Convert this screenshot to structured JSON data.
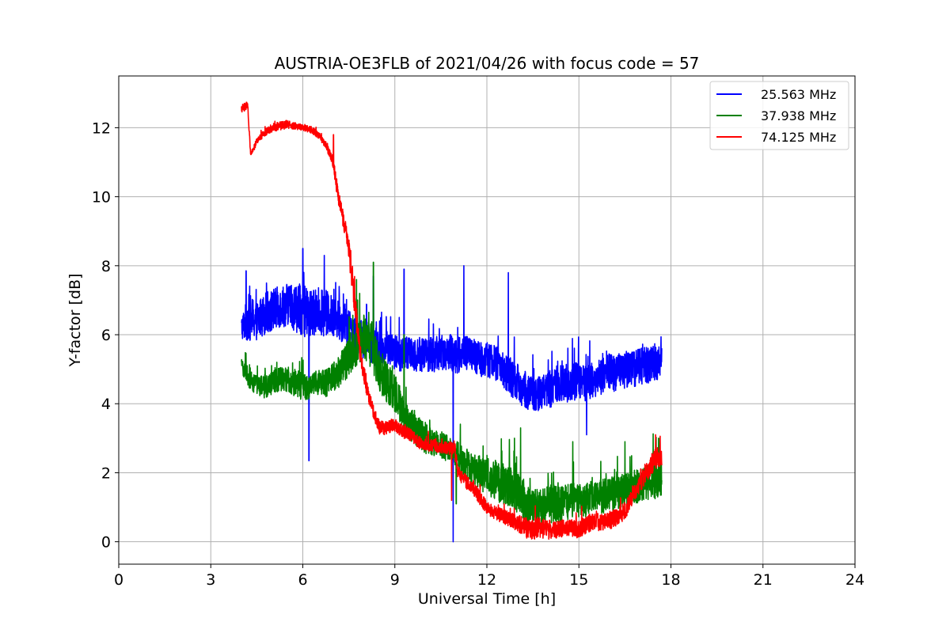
{
  "chart_data": {
    "type": "line",
    "title": "AUSTRIA-OE3FLB of 2021/04/26 with focus code = 57",
    "xlabel": "Universal Time [h]",
    "ylabel": "Y-factor [dB]",
    "xlim": [
      0,
      24
    ],
    "ylim": [
      -0.65,
      13.5
    ],
    "xticks": [
      0,
      3,
      6,
      9,
      12,
      15,
      18,
      21,
      24
    ],
    "yticks": [
      0,
      2,
      4,
      6,
      8,
      10,
      12
    ],
    "grid": true,
    "legend_position": "top-right",
    "series": [
      {
        "name": "25.563 MHz",
        "color": "#0000ff",
        "x": [
          4.0,
          4.25,
          4.5,
          4.75,
          5.0,
          5.25,
          5.5,
          5.75,
          6.0,
          6.25,
          6.5,
          6.75,
          7.0,
          7.25,
          7.5,
          7.75,
          8.0,
          8.25,
          8.5,
          8.75,
          9.0,
          9.25,
          9.5,
          9.75,
          10.0,
          10.25,
          10.5,
          10.75,
          11.0,
          11.25,
          11.5,
          11.75,
          12.0,
          12.25,
          12.5,
          12.75,
          13.0,
          13.25,
          13.5,
          13.75,
          14.0,
          14.25,
          14.5,
          14.75,
          15.0,
          15.25,
          15.5,
          15.75,
          16.0,
          16.25,
          16.5,
          16.75,
          17.0,
          17.25,
          17.5,
          17.7
        ],
        "y": [
          6.2,
          6.5,
          6.4,
          6.6,
          6.7,
          6.8,
          6.9,
          6.8,
          6.7,
          6.6,
          6.7,
          6.6,
          6.5,
          6.4,
          6.2,
          6.0,
          5.8,
          5.7,
          5.6,
          5.6,
          5.5,
          5.4,
          5.5,
          5.4,
          5.5,
          5.4,
          5.5,
          5.5,
          5.4,
          5.5,
          5.4,
          5.3,
          5.3,
          5.2,
          5.0,
          4.8,
          4.6,
          4.4,
          4.3,
          4.3,
          4.4,
          4.5,
          4.6,
          4.6,
          4.7,
          4.6,
          4.7,
          4.8,
          4.9,
          4.9,
          5.0,
          5.0,
          5.1,
          5.1,
          5.2,
          5.2
        ],
        "amplitude": [
          0.35,
          0.7,
          0.55,
          0.6,
          0.65,
          0.6,
          0.65,
          0.7,
          0.75,
          0.7,
          0.65,
          0.7,
          0.6,
          0.6,
          0.55,
          0.5,
          0.5,
          0.55,
          0.55,
          0.5,
          0.5,
          0.5,
          0.5,
          0.5,
          0.55,
          0.5,
          0.5,
          0.55,
          0.55,
          0.55,
          0.5,
          0.5,
          0.55,
          0.5,
          0.5,
          0.55,
          0.55,
          0.55,
          0.5,
          0.5,
          0.55,
          0.55,
          0.55,
          0.55,
          0.55,
          0.55,
          0.55,
          0.55,
          0.55,
          0.55,
          0.55,
          0.55,
          0.55,
          0.55,
          0.55,
          0.5
        ],
        "spikes": [
          [
            4.15,
            7.85
          ],
          [
            6.0,
            8.5
          ],
          [
            6.2,
            2.35
          ],
          [
            6.7,
            8.3
          ],
          [
            8.3,
            7.7
          ],
          [
            9.3,
            7.9
          ],
          [
            10.9,
            0.0
          ],
          [
            11.25,
            8.0
          ],
          [
            12.7,
            7.8
          ],
          [
            15.25,
            3.1
          ]
        ]
      },
      {
        "name": "37.938 MHz",
        "color": "#008000",
        "x": [
          4.0,
          4.25,
          4.5,
          4.75,
          5.0,
          5.25,
          5.5,
          5.75,
          6.0,
          6.25,
          6.5,
          6.75,
          7.0,
          7.25,
          7.5,
          7.75,
          8.0,
          8.25,
          8.5,
          8.75,
          9.0,
          9.25,
          9.5,
          9.75,
          10.0,
          10.25,
          10.5,
          10.75,
          11.0,
          11.25,
          11.5,
          11.75,
          12.0,
          12.25,
          12.5,
          12.75,
          13.0,
          13.25,
          13.5,
          13.75,
          14.0,
          14.25,
          14.5,
          14.75,
          15.0,
          15.25,
          15.5,
          15.75,
          16.0,
          16.25,
          16.5,
          16.75,
          17.0,
          17.25,
          17.5,
          17.7
        ],
        "y": [
          5.1,
          4.8,
          4.5,
          4.5,
          4.6,
          4.7,
          4.7,
          4.6,
          4.5,
          4.5,
          4.6,
          4.6,
          4.8,
          5.0,
          5.4,
          5.7,
          5.9,
          5.7,
          5.0,
          4.6,
          4.3,
          3.8,
          3.4,
          3.2,
          3.0,
          2.9,
          2.8,
          2.7,
          2.6,
          2.3,
          2.1,
          2.0,
          1.9,
          1.8,
          1.7,
          1.6,
          1.4,
          1.1,
          1.0,
          1.0,
          1.1,
          1.1,
          1.1,
          1.2,
          1.2,
          1.2,
          1.3,
          1.3,
          1.4,
          1.4,
          1.5,
          1.6,
          1.6,
          1.7,
          1.8,
          1.8
        ],
        "amplitude": [
          0.2,
          0.35,
          0.3,
          0.35,
          0.35,
          0.35,
          0.35,
          0.4,
          0.4,
          0.35,
          0.35,
          0.4,
          0.45,
          0.5,
          0.6,
          0.6,
          0.6,
          0.7,
          0.65,
          0.6,
          0.6,
          0.55,
          0.5,
          0.45,
          0.45,
          0.4,
          0.4,
          0.4,
          0.4,
          0.4,
          0.45,
          0.5,
          0.55,
          0.6,
          0.6,
          0.65,
          0.6,
          0.55,
          0.5,
          0.55,
          0.55,
          0.55,
          0.55,
          0.5,
          0.5,
          0.5,
          0.5,
          0.5,
          0.5,
          0.5,
          0.5,
          0.5,
          0.5,
          0.55,
          0.55,
          0.5
        ],
        "spikes": [
          [
            7.75,
            7.6
          ],
          [
            8.3,
            8.1
          ],
          [
            9.3,
            6.0
          ],
          [
            11.0,
            1.1
          ],
          [
            12.9,
            3.0
          ],
          [
            13.1,
            3.3
          ],
          [
            14.8,
            2.9
          ],
          [
            16.5,
            2.9
          ],
          [
            17.6,
            3.0
          ]
        ]
      },
      {
        "name": "74.125 MHz",
        "color": "#ff0000",
        "x": [
          4.0,
          4.1,
          4.2,
          4.3,
          4.35,
          4.5,
          4.75,
          5.0,
          5.25,
          5.5,
          5.75,
          6.0,
          6.25,
          6.5,
          6.75,
          6.9,
          7.0,
          7.1,
          7.25,
          7.4,
          7.5,
          7.6,
          7.75,
          7.9,
          8.0,
          8.15,
          8.3,
          8.5,
          8.75,
          9.0,
          9.25,
          9.5,
          9.75,
          10.0,
          10.25,
          10.5,
          10.75,
          10.95,
          11.05,
          11.25,
          11.5,
          11.75,
          12.0,
          12.25,
          12.5,
          12.75,
          13.0,
          13.25,
          13.5,
          13.75,
          14.0,
          14.25,
          14.5,
          14.75,
          15.0,
          15.25,
          15.5,
          15.75,
          16.0,
          16.25,
          16.5,
          16.75,
          17.0,
          17.25,
          17.5,
          17.7
        ],
        "y": [
          12.55,
          12.6,
          12.7,
          11.2,
          11.3,
          11.6,
          11.85,
          12.0,
          12.05,
          12.1,
          12.05,
          12.0,
          11.95,
          11.8,
          11.5,
          11.2,
          11.0,
          10.3,
          9.6,
          9.0,
          8.5,
          7.6,
          6.5,
          5.3,
          4.8,
          4.2,
          3.8,
          3.3,
          3.3,
          3.4,
          3.2,
          3.1,
          2.9,
          2.8,
          2.8,
          2.75,
          2.7,
          2.75,
          2.0,
          1.8,
          1.6,
          1.3,
          1.0,
          0.85,
          0.75,
          0.65,
          0.55,
          0.4,
          0.35,
          0.4,
          0.35,
          0.35,
          0.4,
          0.4,
          0.35,
          0.5,
          0.6,
          0.55,
          0.6,
          0.7,
          0.9,
          1.3,
          1.7,
          2.1,
          2.4,
          2.5
        ],
        "amplitude": [
          0.1,
          0.12,
          0.12,
          0.05,
          0.08,
          0.08,
          0.1,
          0.12,
          0.12,
          0.12,
          0.1,
          0.08,
          0.1,
          0.1,
          0.1,
          0.12,
          0.2,
          0.25,
          0.25,
          0.25,
          0.3,
          0.35,
          0.35,
          0.3,
          0.25,
          0.2,
          0.2,
          0.2,
          0.2,
          0.2,
          0.2,
          0.18,
          0.18,
          0.18,
          0.18,
          0.18,
          0.18,
          0.2,
          0.2,
          0.2,
          0.2,
          0.2,
          0.2,
          0.2,
          0.22,
          0.22,
          0.25,
          0.3,
          0.3,
          0.3,
          0.28,
          0.25,
          0.25,
          0.25,
          0.25,
          0.25,
          0.25,
          0.25,
          0.25,
          0.25,
          0.25,
          0.25,
          0.25,
          0.3,
          0.3,
          0.3
        ],
        "spikes": [
          [
            7.0,
            11.8
          ],
          [
            7.6,
            7.8
          ],
          [
            10.85,
            1.2
          ],
          [
            17.5,
            3.1
          ]
        ]
      }
    ]
  }
}
